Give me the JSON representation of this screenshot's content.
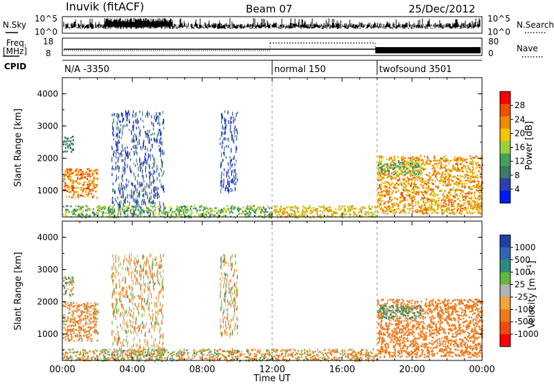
{
  "header": {
    "station": "Inuvik (fitACF)",
    "beam": "Beam 07",
    "date": "25/Dec/2012"
  },
  "noise_panel": {
    "left_label": "N.Sky",
    "left_ticks": [
      "10^5",
      "10^0"
    ],
    "right_label": "N.Search",
    "right_ticks": [
      "10^5",
      "10^0"
    ],
    "right_line_style": "dotted"
  },
  "freq_panel": {
    "left_label_line1": "Freq.",
    "left_label_line2": "[MHz]",
    "left_ticks": [
      "18",
      "8"
    ],
    "right_label": "Nave",
    "right_ticks": [
      "80",
      "0"
    ],
    "right_line_style": "dotted"
  },
  "cpid_panel": {
    "label": "CPID",
    "segments": [
      {
        "name": "N/A -3350",
        "start_hour": 0
      },
      {
        "name": "normal 150",
        "start_hour": 12
      },
      {
        "name": "twofsound 3501",
        "start_hour": 18
      }
    ]
  },
  "time_axis": {
    "title": "Time UT",
    "ticks": [
      "00:00",
      "04:00",
      "08:00",
      "12:00",
      "16:00",
      "20:00",
      "00:00"
    ]
  },
  "colors": {
    "power_scale": [
      "#0018ff",
      "#2a3fb0",
      "#3b7a66",
      "#43a05a",
      "#9ccf3a",
      "#f4c400",
      "#f08a00",
      "#f04d00",
      "#ff0000"
    ],
    "velocity_scale": [
      "#1f3fa8",
      "#2f67b4",
      "#2e8b7a",
      "#62b83a",
      "#b3b3b3",
      "#f3a43c",
      "#f07a1a",
      "#f04a10",
      "#ff0000"
    ]
  },
  "chart_data": [
    {
      "type": "heatmap",
      "title": "",
      "ylabel": "Slant Range [km]",
      "xlabel": "Time UT",
      "ylim": [
        180,
        4500
      ],
      "y_ticks": [
        "1000",
        "2000",
        "3000",
        "4000"
      ],
      "x_range_hours": [
        0,
        24
      ],
      "colorbar": {
        "label": "Power [dB]",
        "ticks": [
          "4",
          "8",
          "12",
          "16",
          "20",
          "24",
          "28"
        ],
        "range": [
          0,
          32
        ]
      },
      "scatter_regions": [
        {
          "t0": 0.0,
          "t1": 2.0,
          "r0": 800,
          "r1": 1700,
          "value": 24
        },
        {
          "t0": 0.0,
          "t1": 0.6,
          "r0": 2200,
          "r1": 2700,
          "value": 10
        },
        {
          "t0": 2.8,
          "t1": 5.8,
          "r0": 300,
          "r1": 3500,
          "value": 6
        },
        {
          "t0": 0.0,
          "t1": 12.0,
          "r0": 180,
          "r1": 550,
          "value": 14
        },
        {
          "t0": 9.0,
          "t1": 10.0,
          "r0": 1000,
          "r1": 3500,
          "value": 5
        },
        {
          "t0": 12.0,
          "t1": 18.0,
          "r0": 180,
          "r1": 550,
          "value": 20
        },
        {
          "t0": 18.0,
          "t1": 24.0,
          "r0": 300,
          "r1": 2100,
          "value": 22
        },
        {
          "t0": 18.0,
          "t1": 20.5,
          "r0": 1500,
          "r1": 1900,
          "value": 13
        }
      ]
    },
    {
      "type": "heatmap",
      "title": "",
      "ylabel": "Slant Range [km]",
      "xlabel": "Time UT",
      "ylim": [
        180,
        4500
      ],
      "y_ticks": [
        "1000",
        "2000",
        "3000",
        "4000"
      ],
      "x_range_hours": [
        0,
        24
      ],
      "colorbar": {
        "label": "Velocity [m s^-1]",
        "ticks": [
          "1000",
          "500",
          "100",
          "25",
          "-25",
          "-100",
          "-500",
          "-1000"
        ]
      },
      "scatter_regions": [
        {
          "t0": 0.0,
          "t1": 2.0,
          "r0": 800,
          "r1": 2000,
          "value": -150
        },
        {
          "t0": 0.0,
          "t1": 0.6,
          "r0": 2200,
          "r1": 2800,
          "value": 0
        },
        {
          "t0": 2.8,
          "t1": 5.8,
          "r0": 300,
          "r1": 3500,
          "value": -80
        },
        {
          "t0": 0.0,
          "t1": 12.0,
          "r0": 180,
          "r1": 550,
          "value": -60
        },
        {
          "t0": 9.0,
          "t1": 10.0,
          "r0": 1000,
          "r1": 3500,
          "value": -50
        },
        {
          "t0": 12.0,
          "t1": 18.0,
          "r0": 180,
          "r1": 550,
          "value": -120
        },
        {
          "t0": 18.0,
          "t1": 24.0,
          "r0": 300,
          "r1": 2100,
          "value": -300
        },
        {
          "t0": 18.0,
          "t1": 20.5,
          "r0": 1500,
          "r1": 1900,
          "value": 150
        }
      ]
    }
  ]
}
